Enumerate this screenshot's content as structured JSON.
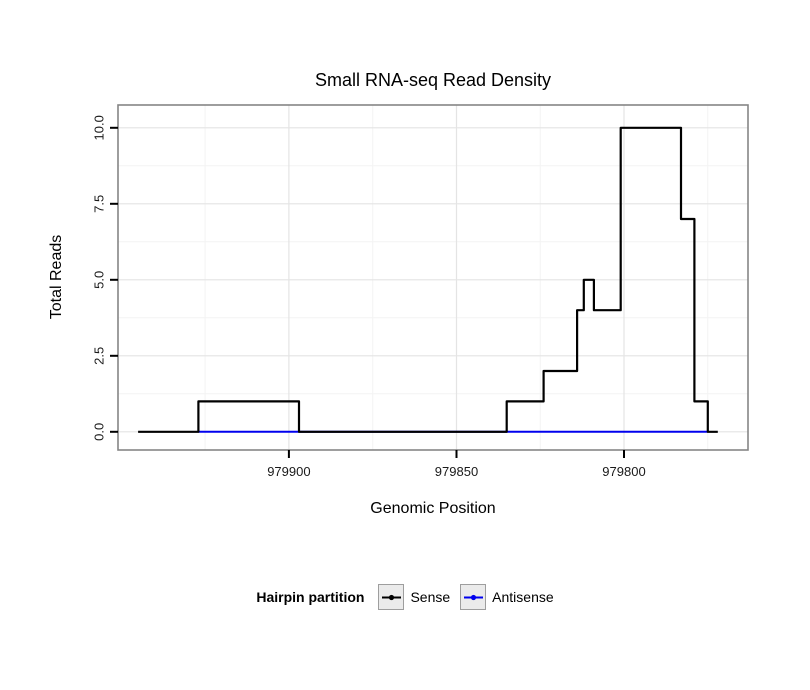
{
  "figure": {
    "background": "#ffffff"
  },
  "chart_data": {
    "type": "line",
    "title": "Small RNA-seq Read Density",
    "xlabel": "Genomic Position",
    "ylabel": "Total Reads",
    "x_reversed": true,
    "xlim": [
      979951,
      979763
    ],
    "ylim": [
      -0.6,
      10.75
    ],
    "x_major_ticks": [
      979900,
      979850,
      979800
    ],
    "x_tick_labels": [
      "979900",
      "979850",
      "979800"
    ],
    "x_minor_ticks": [
      979925,
      979875,
      979825,
      979775
    ],
    "y_major_ticks": [
      0,
      2.5,
      5,
      7.5,
      10
    ],
    "y_tick_labels": [
      "0.0",
      "2.5",
      "5.0",
      "7.5",
      "10.0"
    ],
    "y_minor_ticks": [
      1.25,
      3.75,
      6.25,
      8.75
    ],
    "grid": true,
    "style": {
      "panel_background": "#ffffff",
      "panel_border": "#858585",
      "grid_major": "#e4e4e4",
      "grid_minor": "#f3f3f3",
      "tick_color": "#000000",
      "tick_label_color": "#1a1a1a"
    },
    "series": [
      {
        "name": "Sense",
        "color": "#000000",
        "width": 2.2,
        "points": [
          [
            979945,
            0
          ],
          [
            979927,
            0
          ],
          [
            979927,
            1
          ],
          [
            979897,
            1
          ],
          [
            979897,
            0
          ],
          [
            979835,
            0
          ],
          [
            979835,
            1
          ],
          [
            979824,
            1
          ],
          [
            979824,
            2
          ],
          [
            979814,
            2
          ],
          [
            979814,
            4
          ],
          [
            979812,
            4
          ],
          [
            979812,
            5
          ],
          [
            979809,
            5
          ],
          [
            979809,
            4
          ],
          [
            979801,
            4
          ],
          [
            979801,
            10
          ],
          [
            979783,
            10
          ],
          [
            979783,
            7
          ],
          [
            979779,
            7
          ],
          [
            979779,
            1
          ],
          [
            979775,
            1
          ],
          [
            979775,
            0
          ],
          [
            979772,
            0
          ]
        ]
      },
      {
        "name": "Antisense",
        "color": "#0000ee",
        "width": 2,
        "points": [
          [
            979927,
            0
          ],
          [
            979775,
            0
          ]
        ]
      }
    ],
    "legend": {
      "title": "Hairpin partition",
      "position": "bottom",
      "entries": [
        {
          "label": "Sense",
          "color": "#000000"
        },
        {
          "label": "Antisense",
          "color": "#0000ee"
        }
      ]
    }
  }
}
